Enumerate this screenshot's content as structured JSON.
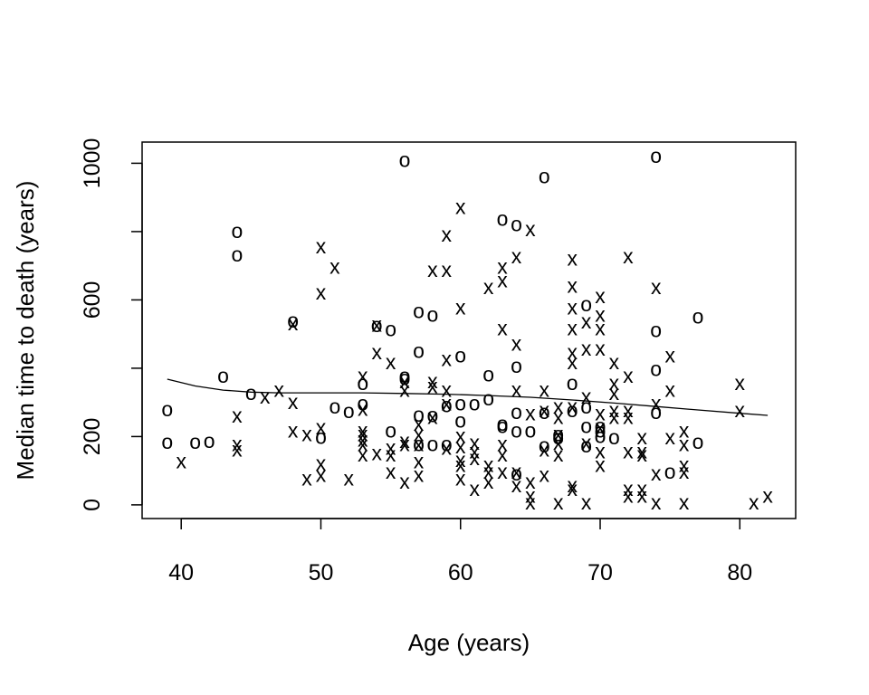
{
  "chart_data": {
    "type": "scatter",
    "xlabel": "Age (years)",
    "ylabel": "Median time to death (years)",
    "xlim": [
      37.2,
      84
    ],
    "ylim": [
      -40,
      1062
    ],
    "x_ticks": [
      40,
      50,
      60,
      70,
      80
    ],
    "y_ticks": [
      0,
      200,
      600,
      1000
    ],
    "grid": false,
    "marker_colors": {
      "points": "#000000",
      "frame": "#000000",
      "line": "#000000"
    },
    "series": [
      {
        "marker": "o",
        "points": [
          [
            39,
            280
          ],
          [
            39,
            185
          ],
          [
            41,
            185
          ],
          [
            42,
            188
          ],
          [
            43,
            378
          ],
          [
            44,
            802
          ],
          [
            44,
            733
          ],
          [
            45,
            328
          ],
          [
            48,
            540
          ],
          [
            50,
            200
          ],
          [
            51,
            288
          ],
          [
            52,
            275
          ],
          [
            53,
            358
          ],
          [
            53,
            298
          ],
          [
            54,
            527
          ],
          [
            55,
            515
          ],
          [
            55,
            218
          ],
          [
            56,
            1010
          ],
          [
            56,
            378
          ],
          [
            56,
            372
          ],
          [
            57,
            568
          ],
          [
            57,
            452
          ],
          [
            57,
            265
          ],
          [
            57,
            178
          ],
          [
            58,
            558
          ],
          [
            58,
            263
          ],
          [
            58,
            178
          ],
          [
            59,
            293
          ],
          [
            59,
            178
          ],
          [
            60,
            438
          ],
          [
            60,
            298
          ],
          [
            60,
            248
          ],
          [
            61,
            298
          ],
          [
            62,
            382
          ],
          [
            62,
            312
          ],
          [
            63,
            838
          ],
          [
            63,
            238
          ],
          [
            63,
            232
          ],
          [
            64,
            822
          ],
          [
            64,
            408
          ],
          [
            64,
            272
          ],
          [
            64,
            218
          ],
          [
            64,
            93
          ],
          [
            65,
            218
          ],
          [
            66,
            962
          ],
          [
            66,
            272
          ],
          [
            66,
            175
          ],
          [
            67,
            208
          ],
          [
            67,
            198
          ],
          [
            68,
            358
          ],
          [
            68,
            278
          ],
          [
            69,
            588
          ],
          [
            69,
            288
          ],
          [
            69,
            232
          ],
          [
            69,
            175
          ],
          [
            70,
            232
          ],
          [
            70,
            218
          ],
          [
            70,
            202
          ],
          [
            71,
            198
          ],
          [
            74,
            1022
          ],
          [
            74,
            512
          ],
          [
            74,
            398
          ],
          [
            74,
            272
          ],
          [
            75,
            98
          ],
          [
            77,
            552
          ],
          [
            77,
            185
          ]
        ]
      },
      {
        "marker": "x",
        "points": [
          [
            40,
            128
          ],
          [
            44,
            262
          ],
          [
            44,
            178
          ],
          [
            44,
            163
          ],
          [
            46,
            318
          ],
          [
            47,
            338
          ],
          [
            48,
            302
          ],
          [
            48,
            532
          ],
          [
            48,
            218
          ],
          [
            49,
            208
          ],
          [
            49,
            78
          ],
          [
            50,
            758
          ],
          [
            50,
            622
          ],
          [
            50,
            228
          ],
          [
            50,
            122
          ],
          [
            50,
            88
          ],
          [
            51,
            698
          ],
          [
            52,
            78
          ],
          [
            53,
            378
          ],
          [
            53,
            282
          ],
          [
            53,
            218
          ],
          [
            53,
            208
          ],
          [
            53,
            192
          ],
          [
            53,
            178
          ],
          [
            53,
            148
          ],
          [
            54,
            528
          ],
          [
            54,
            448
          ],
          [
            54,
            152
          ],
          [
            55,
            418
          ],
          [
            55,
            168
          ],
          [
            55,
            148
          ],
          [
            55,
            98
          ],
          [
            56,
            362
          ],
          [
            56,
            338
          ],
          [
            56,
            188
          ],
          [
            56,
            178
          ],
          [
            56,
            68
          ],
          [
            57,
            238
          ],
          [
            57,
            208
          ],
          [
            57,
            178
          ],
          [
            57,
            128
          ],
          [
            57,
            88
          ],
          [
            58,
            688
          ],
          [
            58,
            362
          ],
          [
            58,
            348
          ],
          [
            58,
            258
          ],
          [
            59,
            688
          ],
          [
            59,
            792
          ],
          [
            59,
            428
          ],
          [
            59,
            338
          ],
          [
            59,
            298
          ],
          [
            59,
            168
          ],
          [
            60,
            872
          ],
          [
            60,
            578
          ],
          [
            60,
            202
          ],
          [
            60,
            172
          ],
          [
            60,
            132
          ],
          [
            60,
            118
          ],
          [
            60,
            78
          ],
          [
            61,
            182
          ],
          [
            61,
            158
          ],
          [
            61,
            138
          ],
          [
            61,
            48
          ],
          [
            62,
            638
          ],
          [
            62,
            118
          ],
          [
            62,
            98
          ],
          [
            62,
            68
          ],
          [
            63,
            658
          ],
          [
            63,
            698
          ],
          [
            63,
            518
          ],
          [
            63,
            178
          ],
          [
            63,
            148
          ],
          [
            63,
            98
          ],
          [
            64,
            728
          ],
          [
            64,
            472
          ],
          [
            64,
            338
          ],
          [
            64,
            98
          ],
          [
            64,
            58
          ],
          [
            65,
            808
          ],
          [
            65,
            268
          ],
          [
            65,
            68
          ],
          [
            65,
            28
          ],
          [
            65,
            8
          ],
          [
            66,
            338
          ],
          [
            66,
            278
          ],
          [
            66,
            162
          ],
          [
            66,
            88
          ],
          [
            67,
            288
          ],
          [
            67,
            258
          ],
          [
            67,
            208
          ],
          [
            67,
            182
          ],
          [
            67,
            148
          ],
          [
            67,
            8
          ],
          [
            68,
            722
          ],
          [
            68,
            642
          ],
          [
            68,
            578
          ],
          [
            68,
            518
          ],
          [
            68,
            448
          ],
          [
            68,
            418
          ],
          [
            68,
            288
          ],
          [
            68,
            58
          ],
          [
            68,
            48
          ],
          [
            69,
            538
          ],
          [
            69,
            458
          ],
          [
            69,
            318
          ],
          [
            69,
            182
          ],
          [
            69,
            8
          ],
          [
            70,
            612
          ],
          [
            70,
            558
          ],
          [
            70,
            518
          ],
          [
            70,
            458
          ],
          [
            70,
            268
          ],
          [
            70,
            228
          ],
          [
            70,
            158
          ],
          [
            70,
            118
          ],
          [
            71,
            418
          ],
          [
            71,
            358
          ],
          [
            71,
            328
          ],
          [
            71,
            278
          ],
          [
            71,
            258
          ],
          [
            72,
            728
          ],
          [
            72,
            378
          ],
          [
            72,
            278
          ],
          [
            72,
            258
          ],
          [
            72,
            158
          ],
          [
            72,
            48
          ],
          [
            72,
            28
          ],
          [
            73,
            198
          ],
          [
            73,
            158
          ],
          [
            73,
            148
          ],
          [
            73,
            48
          ],
          [
            73,
            28
          ],
          [
            74,
            638
          ],
          [
            74,
            298
          ],
          [
            74,
            92
          ],
          [
            74,
            8
          ],
          [
            75,
            438
          ],
          [
            75,
            338
          ],
          [
            75,
            198
          ],
          [
            76,
            218
          ],
          [
            76,
            178
          ],
          [
            76,
            118
          ],
          [
            76,
            98
          ],
          [
            76,
            8
          ],
          [
            80,
            358
          ],
          [
            80,
            278
          ],
          [
            81,
            8
          ],
          [
            82,
            28
          ]
        ]
      }
    ],
    "trend_line": {
      "x": [
        39,
        41,
        43,
        45,
        47,
        50,
        53,
        56,
        59,
        62,
        65,
        68,
        71,
        74,
        77,
        80,
        82
      ],
      "y": [
        368,
        348,
        336,
        330,
        328,
        328,
        328,
        326,
        324,
        320,
        315,
        307,
        298,
        288,
        278,
        268,
        262
      ]
    }
  }
}
